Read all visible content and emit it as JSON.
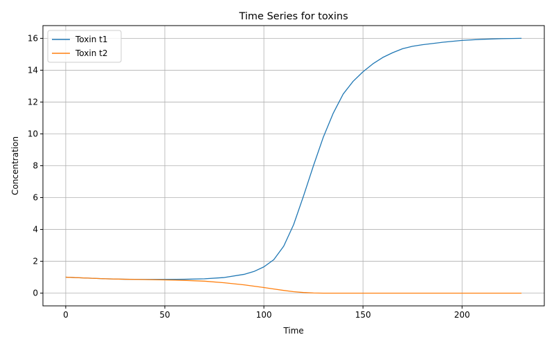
{
  "chart_data": {
    "type": "line",
    "title": "Time Series for toxins",
    "xlabel": "Time",
    "ylabel": "Concentration",
    "xlim": [
      -11.5,
      241.5
    ],
    "ylim": [
      -0.8,
      16.8
    ],
    "xticks": [
      0,
      50,
      100,
      150,
      200
    ],
    "yticks": [
      0,
      2,
      4,
      6,
      8,
      10,
      12,
      14,
      16
    ],
    "grid": true,
    "legend_position": "top-left",
    "series": [
      {
        "name": "Toxin t1",
        "color": "#1f77b4",
        "x": [
          0,
          10,
          20,
          30,
          40,
          50,
          60,
          70,
          80,
          90,
          95,
          100,
          105,
          110,
          115,
          120,
          125,
          130,
          135,
          140,
          145,
          150,
          155,
          160,
          165,
          170,
          175,
          180,
          190,
          200,
          210,
          220,
          230
        ],
        "y": [
          1.0,
          0.95,
          0.9,
          0.87,
          0.86,
          0.86,
          0.87,
          0.9,
          0.98,
          1.18,
          1.36,
          1.65,
          2.1,
          2.95,
          4.3,
          6.1,
          8.0,
          9.8,
          11.3,
          12.5,
          13.3,
          13.9,
          14.4,
          14.8,
          15.1,
          15.35,
          15.5,
          15.6,
          15.75,
          15.87,
          15.94,
          15.98,
          16.0
        ]
      },
      {
        "name": "Toxin t2",
        "color": "#ff7f0e",
        "x": [
          0,
          10,
          20,
          30,
          40,
          50,
          60,
          70,
          80,
          90,
          100,
          105,
          110,
          115,
          120,
          125,
          130,
          140,
          150,
          170,
          200,
          230
        ],
        "y": [
          1.0,
          0.95,
          0.9,
          0.87,
          0.85,
          0.83,
          0.8,
          0.75,
          0.65,
          0.52,
          0.35,
          0.26,
          0.17,
          0.09,
          0.04,
          0.01,
          0.0,
          0.0,
          0.0,
          0.0,
          0.0,
          0.0
        ]
      }
    ]
  }
}
